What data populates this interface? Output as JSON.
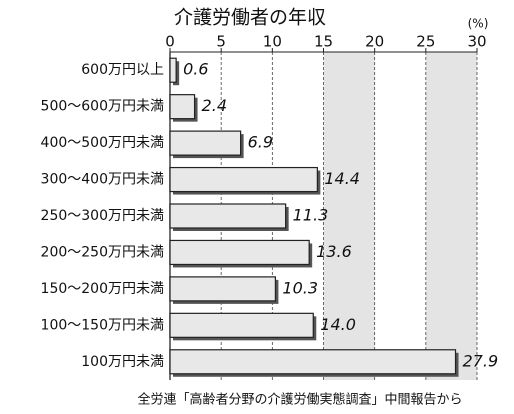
{
  "chart_data": {
    "type": "bar",
    "orientation": "horizontal",
    "title": "介護労働者の年収",
    "unit": "(%)",
    "source": "全労連「高齢者分野の介護労働実態調査」中間報告から",
    "categories": [
      "600万円以上",
      "500～600万円未満",
      "400～500万円未満",
      "300～400万円未満",
      "250～300万円未満",
      "200～250万円未満",
      "150～200万円未満",
      "100～150万円未満",
      "100万円未満"
    ],
    "values": [
      0.6,
      2.4,
      6.9,
      14.4,
      11.3,
      13.6,
      10.3,
      14.0,
      27.9
    ],
    "value_labels": [
      "0.6",
      "2.4",
      "6.9",
      "14.4",
      "11.3",
      "13.6",
      "10.3",
      "14.0",
      "27.9"
    ],
    "color": "#e8e8e8",
    "xlim": [
      0,
      30
    ],
    "xticks": [
      0,
      5,
      10,
      15,
      20,
      25,
      30
    ],
    "shaded_bands": [
      [
        15,
        20
      ],
      [
        25,
        30
      ]
    ],
    "band_color": "#e4e4e4",
    "grid": true
  }
}
